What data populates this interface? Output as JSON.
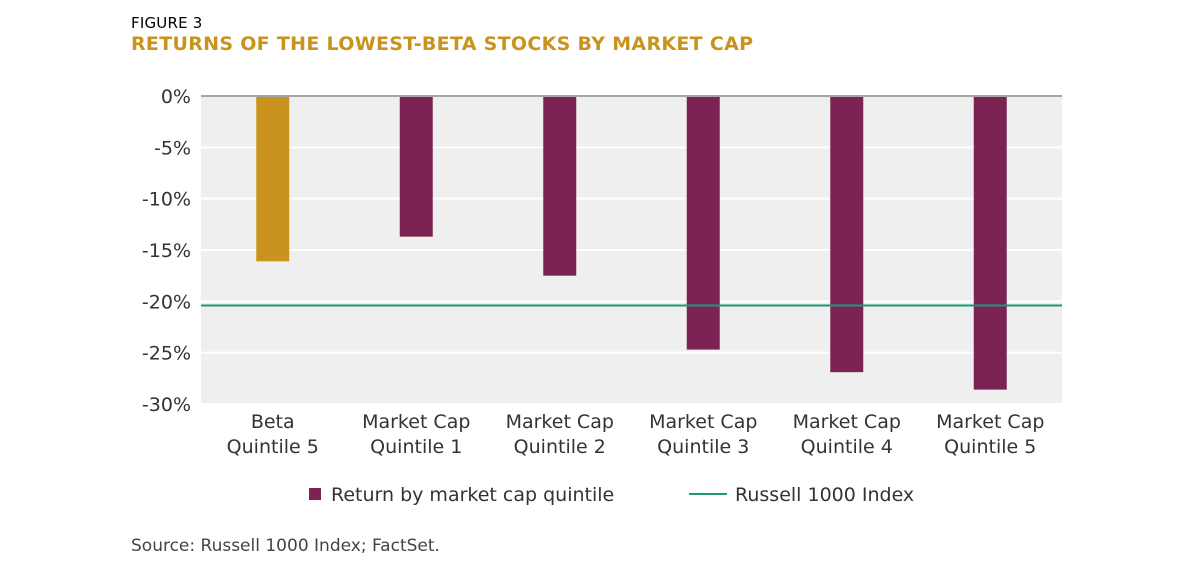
{
  "figure_label": "FIGURE 3",
  "title": "RETURNS OF THE LOWEST-BETA STOCKS BY MARKET CAP",
  "source": "Source: Russell 1000 Index; FactSet.",
  "colors": {
    "title": "#c9931d",
    "highlight_bar": "#c9931d",
    "bar": "#7b2453",
    "benchmark_line": "#1a9a7a",
    "plot_background": "#efefef",
    "axis_zero_line": "#a6a6a6"
  },
  "chart_data": {
    "type": "bar",
    "title": "RETURNS OF THE LOWEST-BETA STOCKS BY MARKET CAP",
    "xlabel": "",
    "ylabel": "",
    "ylim": [
      -30,
      0
    ],
    "y_ticks": [
      0,
      -5,
      -10,
      -15,
      -20,
      -25,
      -30
    ],
    "y_tick_labels": [
      "0%",
      "-5%",
      "-10%",
      "-15%",
      "-20%",
      "-25%",
      "-30%"
    ],
    "grid": true,
    "categories": [
      [
        "Beta",
        "Quintile 5"
      ],
      [
        "Market Cap",
        "Quintile 1"
      ],
      [
        "Market Cap",
        "Quintile 2"
      ],
      [
        "Market Cap",
        "Quintile 3"
      ],
      [
        "Market Cap",
        "Quintile 4"
      ],
      [
        "Market Cap",
        "Quintile 5"
      ]
    ],
    "series": [
      {
        "name": "Return by market cap quintile",
        "values": [
          -16.1,
          -13.7,
          -17.5,
          -24.7,
          -26.9,
          -28.6
        ],
        "highlight_index": 0
      }
    ],
    "reference_line": {
      "name": "Russell 1000 Index",
      "value": -20.4
    },
    "legend": {
      "placement": "bottom-center",
      "items": [
        "Return by market cap quintile",
        "Russell 1000 Index"
      ]
    }
  }
}
